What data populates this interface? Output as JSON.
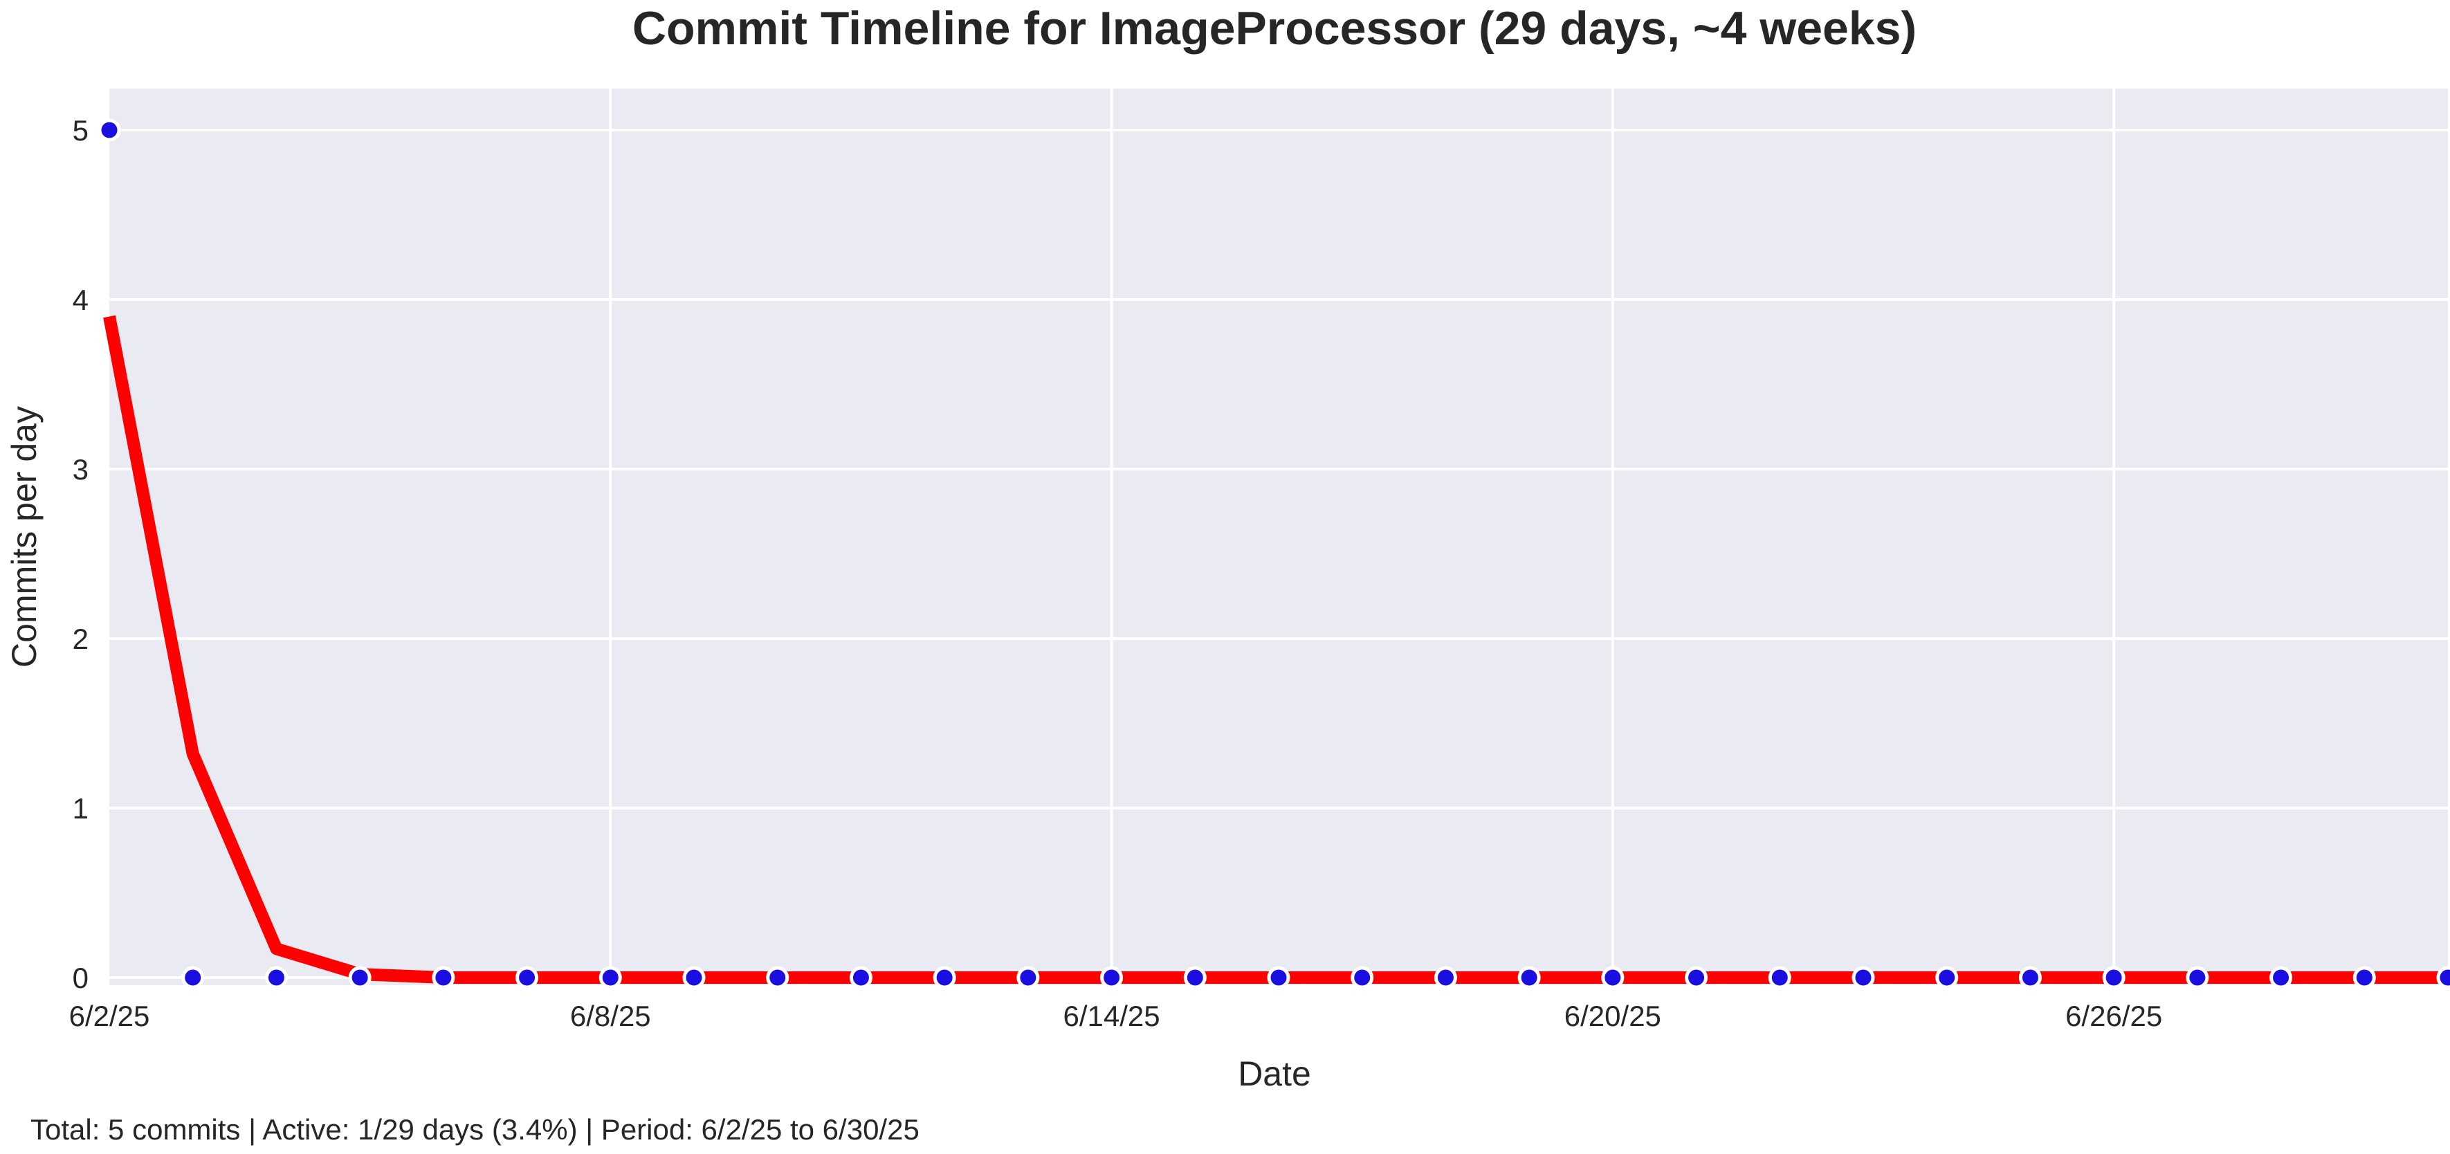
{
  "chart_data": {
    "type": "line",
    "title": "Commit Timeline for ImageProcessor (29 days, ~4 weeks)",
    "xlabel": "Date",
    "ylabel": "Commits per day",
    "ylim": [
      0,
      5.25
    ],
    "y_ticks": [
      0,
      1,
      2,
      3,
      4,
      5
    ],
    "x_ticks": [
      "6/2/25",
      "6/8/25",
      "6/14/25",
      "6/20/25",
      "6/26/25"
    ],
    "x_range": [
      "6/2/25",
      "6/30/25"
    ],
    "grid": true,
    "x": [
      "6/2/25",
      "6/3/25",
      "6/4/25",
      "6/5/25",
      "6/6/25",
      "6/7/25",
      "6/8/25",
      "6/9/25",
      "6/10/25",
      "6/11/25",
      "6/12/25",
      "6/13/25",
      "6/14/25",
      "6/15/25",
      "6/16/25",
      "6/17/25",
      "6/18/25",
      "6/19/25",
      "6/20/25",
      "6/21/25",
      "6/22/25",
      "6/23/25",
      "6/24/25",
      "6/25/25",
      "6/26/25",
      "6/27/25",
      "6/28/25",
      "6/29/25",
      "6/30/25"
    ],
    "series": [
      {
        "kind": "points",
        "color": "#1a0fe0",
        "values": [
          5,
          0,
          0,
          0,
          0,
          0,
          0,
          0,
          0,
          0,
          0,
          0,
          0,
          0,
          0,
          0,
          0,
          0,
          0,
          0,
          0,
          0,
          0,
          0,
          0,
          0,
          0,
          0,
          0
        ]
      },
      {
        "kind": "line",
        "color": "#ff0000",
        "values": [
          3.9,
          1.32,
          0.17,
          0.02,
          0,
          0,
          0,
          0,
          0,
          0,
          0,
          0,
          0,
          0,
          0,
          0,
          0,
          0,
          0,
          0,
          0,
          0,
          0,
          0,
          0,
          0,
          0,
          0,
          0
        ]
      }
    ],
    "colors": {
      "background": "#eaeaf2",
      "grid": "#ffffff",
      "text": "#262626"
    }
  },
  "footer": "Total: 5 commits | Active: 1/29 days (3.4%) | Period: 6/2/25 to 6/30/25"
}
